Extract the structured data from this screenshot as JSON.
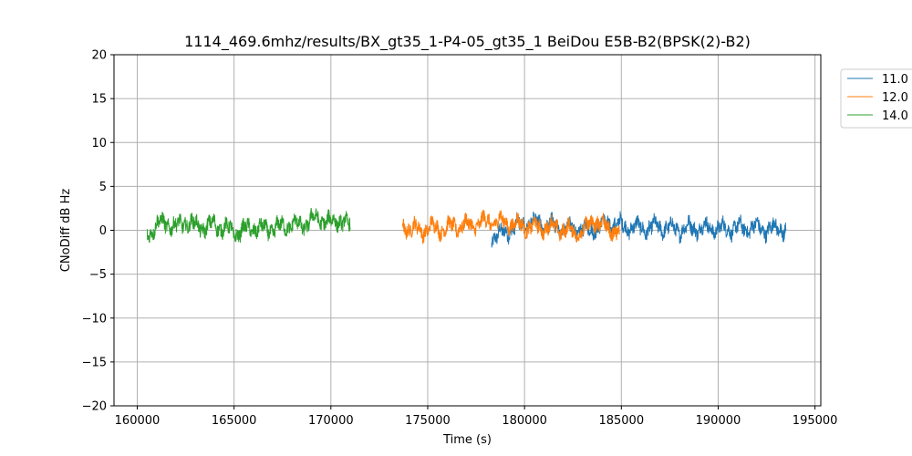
{
  "chart_data": {
    "type": "line",
    "title": "1114_469.6mhz/results/BX_gt35_1-P4-05_gt35_1 BeiDou E5B-B2(BPSK(2)-B2)",
    "xlabel": "Time (s)",
    "ylabel": "CNoDiff dB Hz",
    "xlim": [
      158800,
      195300
    ],
    "ylim": [
      -20,
      20
    ],
    "xticks": [
      160000,
      165000,
      170000,
      175000,
      180000,
      185000,
      190000,
      195000
    ],
    "xtick_labels": [
      "160000",
      "165000",
      "170000",
      "175000",
      "180000",
      "185000",
      "190000",
      "195000"
    ],
    "yticks": [
      -20,
      -15,
      -10,
      -5,
      0,
      5,
      10,
      15,
      20
    ],
    "ytick_labels": [
      "−20",
      "−15",
      "−10",
      "−5",
      "0",
      "5",
      "10",
      "15",
      "20"
    ],
    "grid": true,
    "legend_position": "outside-top-right",
    "series": [
      {
        "name": "11.0",
        "color": "#1f77b4",
        "x": [
          178300,
          178800,
          179300,
          179800,
          180300,
          180800,
          181300,
          181800,
          182300,
          182800,
          183300,
          183800,
          184300,
          184800,
          185300,
          185800,
          186300,
          186800,
          187300,
          187800,
          188300,
          188800,
          189300,
          189800,
          190300,
          190800,
          191300,
          191800,
          192300,
          192800,
          193300,
          193500
        ],
        "y": [
          -0.8,
          -0.5,
          0.2,
          0.6,
          1.0,
          0.8,
          0.5,
          0.3,
          0.2,
          0.1,
          0.0,
          0.4,
          0.8,
          0.6,
          0.4,
          0.3,
          0.2,
          0.4,
          0.3,
          0.1,
          0.2,
          0.3,
          0.2,
          0.3,
          0.1,
          0.3,
          0.2,
          0.4,
          0.1,
          0.2,
          0.2,
          0.0
        ]
      },
      {
        "name": "12.0",
        "color": "#ff7f0e",
        "x": [
          173700,
          174200,
          174700,
          175200,
          175700,
          176200,
          176700,
          177200,
          177700,
          178200,
          178700,
          179200,
          179700,
          180200,
          180700,
          181200,
          181700,
          182200,
          182700,
          183200,
          183500,
          183800,
          184200,
          184600,
          184900
        ],
        "y": [
          0.5,
          0.2,
          0.0,
          0.3,
          0.2,
          0.3,
          0.6,
          0.5,
          0.9,
          1.0,
          1.0,
          0.8,
          0.6,
          0.4,
          0.3,
          0.4,
          0.3,
          0.0,
          -0.2,
          0.0,
          1.3,
          0.8,
          0.4,
          0.1,
          -0.5
        ]
      },
      {
        "name": "14.0",
        "color": "#2ca02c",
        "x": [
          160500,
          161000,
          161500,
          162000,
          162500,
          163000,
          163500,
          164000,
          164500,
          165000,
          165500,
          166000,
          166500,
          167000,
          167500,
          168000,
          168500,
          169000,
          169500,
          170000,
          170500,
          171000
        ],
        "y": [
          -0.5,
          0.6,
          0.9,
          0.3,
          1.0,
          0.5,
          0.4,
          0.6,
          0.3,
          -0.3,
          0.0,
          0.3,
          0.1,
          0.2,
          0.4,
          0.7,
          0.5,
          1.2,
          1.3,
          0.8,
          1.3,
          0.3
        ]
      }
    ]
  }
}
